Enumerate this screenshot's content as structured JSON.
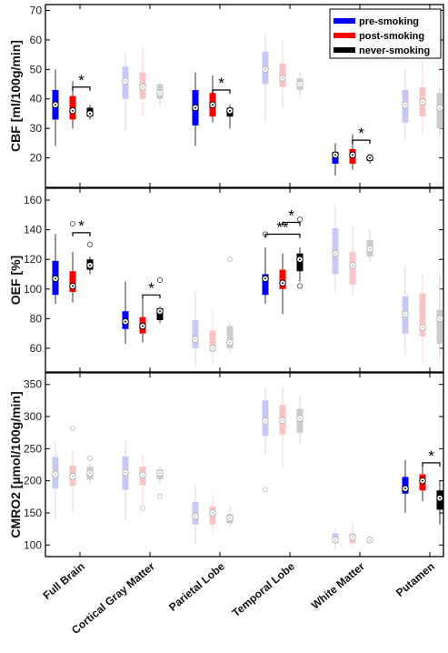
{
  "legend": {
    "position": "top-right",
    "entries": [
      {
        "label": "pre-smoking",
        "color": "#0000ff"
      },
      {
        "label": "post-smoking",
        "color": "#ff0000"
      },
      {
        "label": "never-smoking",
        "color": "#000000"
      }
    ]
  },
  "categories": [
    "Full Brain",
    "Cortical Gray Matter",
    "Parietal Lobe",
    "Temporal Lobe",
    "White Matter",
    "Putamen"
  ],
  "chart_data": [
    {
      "type": "box",
      "ylabel": "CBF [ml/100g/min]",
      "ylim": [
        10,
        72
      ],
      "yticks": [
        20,
        30,
        40,
        50,
        60,
        70
      ],
      "categories": [
        "Full Brain",
        "Cortical Gray Matter",
        "Parietal Lobe",
        "Temporal Lobe",
        "White Matter",
        "Putamen"
      ],
      "highlighted": [
        true,
        false,
        true,
        false,
        true,
        false
      ],
      "series": [
        {
          "name": "pre-smoking",
          "boxes": [
            {
              "min": 24,
              "q1": 33,
              "median": 38,
              "q3": 43,
              "max": 50,
              "outliers": []
            },
            {
              "min": 29,
              "q1": 40,
              "median": 46,
              "q3": 51,
              "max": 56,
              "outliers": []
            },
            {
              "min": 24,
              "q1": 31,
              "median": 37,
              "q3": 43,
              "max": 49,
              "outliers": []
            },
            {
              "min": 32,
              "q1": 45,
              "median": 50,
              "q3": 56,
              "max": 62,
              "outliers": []
            },
            {
              "min": 14,
              "q1": 18,
              "median": 21,
              "q3": 22,
              "max": 25,
              "outliers": []
            },
            {
              "min": 26,
              "q1": 32,
              "median": 38,
              "q3": 43,
              "max": 50,
              "outliers": []
            }
          ]
        },
        {
          "name": "post-smoking",
          "boxes": [
            {
              "min": 30,
              "q1": 33,
              "median": 36,
              "q3": 41,
              "max": 46,
              "outliers": []
            },
            {
              "min": 34,
              "q1": 40,
              "median": 44,
              "q3": 49,
              "max": 57,
              "outliers": []
            },
            {
              "min": 32,
              "q1": 34,
              "median": 38,
              "q3": 42,
              "max": 48,
              "outliers": []
            },
            {
              "min": 37,
              "q1": 44,
              "median": 47,
              "q3": 52,
              "max": 60,
              "outliers": []
            },
            {
              "min": 16,
              "q1": 18,
              "median": 21,
              "q3": 23,
              "max": 28,
              "outliers": []
            },
            {
              "min": 28,
              "q1": 34,
              "median": 39,
              "q3": 44,
              "max": 53,
              "outliers": []
            }
          ]
        },
        {
          "name": "never-smoking",
          "boxes": [
            {
              "min": 33,
              "q1": 34,
              "median": 35,
              "q3": 37,
              "max": 38,
              "outliers": []
            },
            {
              "min": 38,
              "q1": 40,
              "median": 42,
              "q3": 45,
              "max": 46,
              "outliers": []
            },
            {
              "min": 30,
              "q1": 34,
              "median": 36,
              "q3": 37,
              "max": 38,
              "outliers": []
            },
            {
              "min": 41,
              "q1": 43,
              "median": 45,
              "q3": 47,
              "max": 49,
              "outliers": []
            },
            {
              "min": 18,
              "q1": 19,
              "median": 20,
              "q3": 20,
              "max": 21,
              "outliers": []
            },
            {
              "min": 27,
              "q1": 30,
              "median": 37,
              "q3": 42,
              "max": 44,
              "outliers": []
            }
          ]
        }
      ],
      "significance": [
        {
          "category": 0,
          "between": [
            1,
            2
          ],
          "y": 44,
          "label": "*"
        },
        {
          "category": 2,
          "between": [
            1,
            2
          ],
          "y": 43,
          "label": "*"
        },
        {
          "category": 4,
          "between": [
            1,
            2
          ],
          "y": 26,
          "label": "*"
        }
      ]
    },
    {
      "type": "box",
      "ylabel": "OEF [%]",
      "ylim": [
        44,
        168
      ],
      "yticks": [
        60,
        80,
        100,
        120,
        140,
        160
      ],
      "categories": [
        "Full Brain",
        "Cortical Gray Matter",
        "Parietal Lobe",
        "Temporal Lobe",
        "White Matter",
        "Putamen"
      ],
      "highlighted": [
        true,
        true,
        false,
        true,
        false,
        false
      ],
      "series": [
        {
          "name": "pre-smoking",
          "boxes": [
            {
              "min": 90,
              "q1": 96,
              "median": 107,
              "q3": 119,
              "max": 137,
              "outliers": []
            },
            {
              "min": 63,
              "q1": 73,
              "median": 78,
              "q3": 85,
              "max": 105,
              "outliers": []
            },
            {
              "min": 47,
              "q1": 60,
              "median": 66,
              "q3": 79,
              "max": 99,
              "outliers": []
            },
            {
              "min": 90,
              "q1": 96,
              "median": 107,
              "q3": 110,
              "max": 128,
              "outliers": [
                137
              ]
            },
            {
              "min": 98,
              "q1": 110,
              "median": 124,
              "q3": 141,
              "max": 157,
              "outliers": []
            },
            {
              "min": 55,
              "q1": 70,
              "median": 83,
              "q3": 95,
              "max": 115,
              "outliers": []
            }
          ]
        },
        {
          "name": "post-smoking",
          "boxes": [
            {
              "min": 91,
              "q1": 98,
              "median": 102,
              "q3": 112,
              "max": 125,
              "outliers": [
                144
              ]
            },
            {
              "min": 64,
              "q1": 70,
              "median": 75,
              "q3": 81,
              "max": 94,
              "outliers": []
            },
            {
              "min": 50,
              "q1": 58,
              "median": 60,
              "q3": 72,
              "max": 85,
              "outliers": []
            },
            {
              "min": 83,
              "q1": 100,
              "median": 104,
              "q3": 113,
              "max": 124,
              "outliers": []
            },
            {
              "min": 96,
              "q1": 103,
              "median": 116,
              "q3": 125,
              "max": 143,
              "outliers": []
            },
            {
              "min": 49,
              "q1": 68,
              "median": 74,
              "q3": 97,
              "max": 110,
              "outliers": []
            }
          ]
        },
        {
          "name": "never-smoking",
          "boxes": [
            {
              "min": 110,
              "q1": 113,
              "median": 116,
              "q3": 120,
              "max": 122,
              "outliers": [
                130
              ]
            },
            {
              "min": 77,
              "q1": 79,
              "median": 85,
              "q3": 87,
              "max": 88,
              "outliers": [
                106
              ]
            },
            {
              "min": 58,
              "q1": 60,
              "median": 64,
              "q3": 75,
              "max": 78,
              "outliers": [
                120
              ]
            },
            {
              "min": 105,
              "q1": 112,
              "median": 120,
              "q3": 124,
              "max": 128,
              "outliers": [
                102,
                147
              ]
            },
            {
              "min": 118,
              "q1": 122,
              "median": 127,
              "q3": 133,
              "max": 140,
              "outliers": []
            },
            {
              "min": 54,
              "q1": 63,
              "median": 80,
              "q3": 86,
              "max": 110,
              "outliers": []
            }
          ]
        }
      ],
      "significance": [
        {
          "category": 0,
          "between": [
            1,
            2
          ],
          "y": 138,
          "label": "*"
        },
        {
          "category": 1,
          "between": [
            1,
            2
          ],
          "y": 96,
          "label": "*"
        },
        {
          "category": 3,
          "between": [
            0,
            2
          ],
          "y": 137,
          "label": "**"
        },
        {
          "category": 3,
          "between": [
            1,
            2
          ],
          "y": 145,
          "label": "*"
        }
      ]
    },
    {
      "type": "box",
      "ylabel": "CMRO2 [µmol/100g/min]",
      "ylim": [
        82,
        368
      ],
      "yticks": [
        100,
        150,
        200,
        250,
        300,
        350
      ],
      "categories": [
        "Full Brain",
        "Cortical Gray Matter",
        "Parietal Lobe",
        "Temporal Lobe",
        "White Matter",
        "Putamen"
      ],
      "highlighted": [
        false,
        false,
        false,
        false,
        false,
        true
      ],
      "series": [
        {
          "name": "pre-smoking",
          "boxes": [
            {
              "min": 140,
              "q1": 188,
              "median": 210,
              "q3": 237,
              "max": 260,
              "outliers": []
            },
            {
              "min": 138,
              "q1": 186,
              "median": 213,
              "q3": 238,
              "max": 262,
              "outliers": []
            },
            {
              "min": 102,
              "q1": 132,
              "median": 145,
              "q3": 167,
              "max": 195,
              "outliers": []
            },
            {
              "min": 240,
              "q1": 270,
              "median": 293,
              "q3": 325,
              "max": 345,
              "outliers": [
                186
              ]
            },
            {
              "min": 92,
              "q1": 103,
              "median": 108,
              "q3": 118,
              "max": 128,
              "outliers": []
            },
            {
              "min": 150,
              "q1": 180,
              "median": 188,
              "q3": 206,
              "max": 232,
              "outliers": []
            }
          ]
        },
        {
          "name": "post-smoking",
          "boxes": [
            {
              "min": 152,
              "q1": 192,
              "median": 207,
              "q3": 224,
              "max": 245,
              "outliers": [
                281
              ]
            },
            {
              "min": 160,
              "q1": 193,
              "median": 209,
              "q3": 222,
              "max": 242,
              "outliers": [
                157
              ]
            },
            {
              "min": 118,
              "q1": 132,
              "median": 150,
              "q3": 160,
              "max": 180,
              "outliers": []
            },
            {
              "min": 220,
              "q1": 272,
              "median": 294,
              "q3": 318,
              "max": 346,
              "outliers": []
            },
            {
              "min": 96,
              "q1": 103,
              "median": 112,
              "q3": 118,
              "max": 135,
              "outliers": []
            },
            {
              "min": 168,
              "q1": 185,
              "median": 200,
              "q3": 210,
              "max": 225,
              "outliers": []
            }
          ]
        },
        {
          "name": "never-smoking",
          "boxes": [
            {
              "min": 195,
              "q1": 202,
              "median": 212,
              "q3": 222,
              "max": 228,
              "outliers": [
                235
              ]
            },
            {
              "min": 196,
              "q1": 202,
              "median": 212,
              "q3": 218,
              "max": 222,
              "outliers": [
                176
              ]
            },
            {
              "min": 128,
              "q1": 134,
              "median": 142,
              "q3": 148,
              "max": 160,
              "outliers": []
            },
            {
              "min": 258,
              "q1": 275,
              "median": 297,
              "q3": 312,
              "max": 330,
              "outliers": []
            },
            {
              "min": 103,
              "q1": 104,
              "median": 108,
              "q3": 111,
              "max": 112,
              "outliers": []
            },
            {
              "min": 132,
              "q1": 155,
              "median": 173,
              "q3": 185,
              "max": 200,
              "outliers": []
            }
          ]
        }
      ],
      "significance": [
        {
          "category": 5,
          "between": [
            1,
            2
          ],
          "y": 228,
          "label": "*"
        }
      ]
    }
  ]
}
